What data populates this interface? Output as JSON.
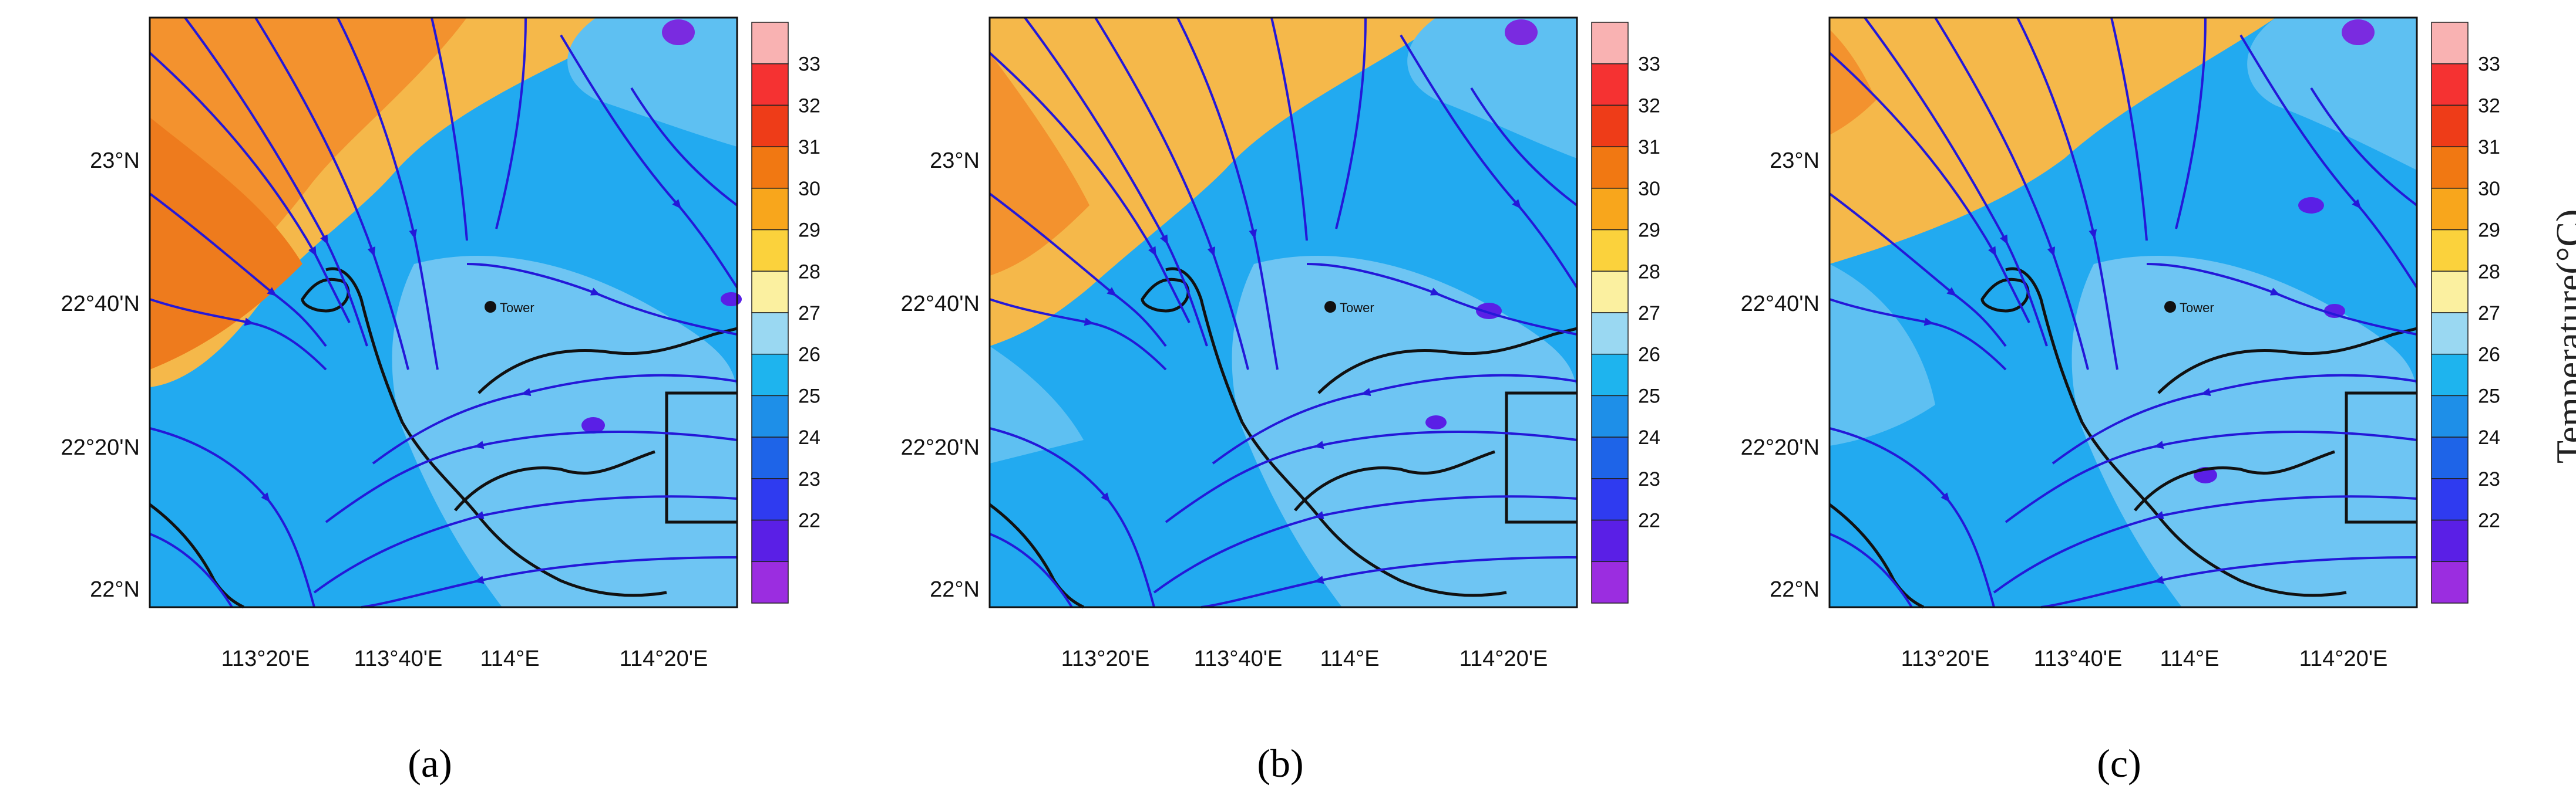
{
  "figure": {
    "panels": [
      {
        "caption": "(a)",
        "warm_extent": "large"
      },
      {
        "caption": "(b)",
        "warm_extent": "medium"
      },
      {
        "caption": "(c)",
        "warm_extent": "small"
      }
    ],
    "lat_ticks": [
      "23°N",
      "22°40'N",
      "22°20'N",
      "22°N"
    ],
    "lon_ticks": [
      "113°20'E",
      "113°40'E",
      "114°E",
      "114°20'E"
    ],
    "station_label": "Tower",
    "colorbar": {
      "title": "Temperature(°C)",
      "levels": [
        "22",
        "23",
        "24",
        "25",
        "26",
        "27",
        "28",
        "29",
        "30",
        "31",
        "32",
        "33"
      ],
      "colors": [
        "#9b2de0",
        "#5a1fe6",
        "#2f3bf0",
        "#1e64e8",
        "#1e8fe8",
        "#1eb4ee",
        "#9ad8f2",
        "#fbf0a0",
        "#fbd23c",
        "#f8a61c",
        "#f17812",
        "#ee3c18",
        "#f53232",
        "#f9b2b2"
      ]
    },
    "colors": {
      "streamline": "#2418d8",
      "coastline": "#111111",
      "cool_sea": "#22aaf0"
    }
  }
}
